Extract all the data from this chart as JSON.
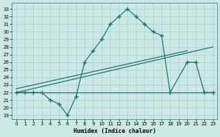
{
  "xlabel": "Humidex (Indice chaleur)",
  "bg_color": "#cce8e4",
  "line_color": "#1e6e6a",
  "grid_color": "#a0d4ce",
  "xlim": [
    -0.5,
    23.5
  ],
  "ylim": [
    18.5,
    33.8
  ],
  "yticks": [
    19,
    20,
    21,
    22,
    23,
    24,
    25,
    26,
    27,
    28,
    29,
    30,
    31,
    32,
    33
  ],
  "xticks": [
    0,
    1,
    2,
    3,
    4,
    5,
    6,
    7,
    8,
    9,
    10,
    11,
    12,
    13,
    14,
    15,
    16,
    17,
    18,
    19,
    20,
    21,
    22,
    23
  ],
  "line1_x": [
    0,
    1,
    2,
    3,
    4,
    5,
    6,
    7,
    8,
    9,
    10,
    11,
    12,
    13,
    14,
    15,
    16,
    17,
    18,
    20,
    21,
    22,
    23
  ],
  "line1_y": [
    22,
    22,
    22,
    22,
    21,
    20.5,
    19,
    21.5,
    26,
    27.5,
    29,
    31,
    32,
    33,
    32,
    31,
    30,
    29.5,
    22,
    26,
    26,
    22,
    22
  ],
  "line2_x": [
    0,
    3,
    10,
    14,
    19,
    23
  ],
  "line2_y": [
    22,
    22,
    22,
    22,
    22,
    22
  ],
  "line3_x": [
    0,
    23
  ],
  "line3_y": [
    22,
    28
  ],
  "line4_x": [
    0,
    20
  ],
  "line4_y": [
    22.5,
    27.5
  ]
}
